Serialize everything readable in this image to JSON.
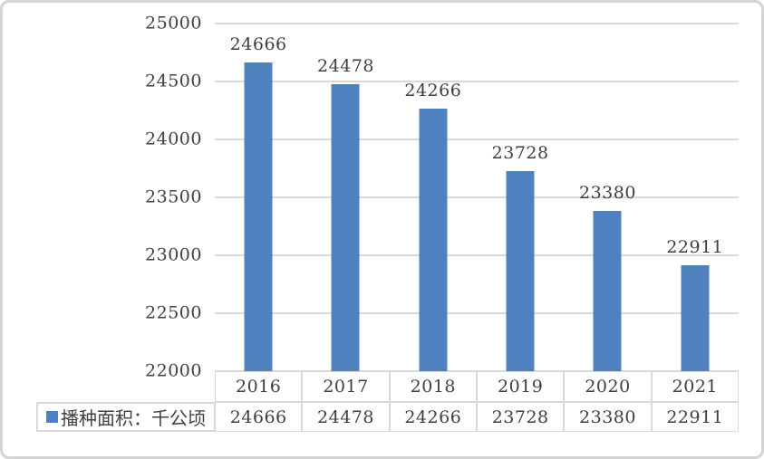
{
  "chart_data": {
    "type": "bar",
    "title": "",
    "categories": [
      "2016",
      "2017",
      "2018",
      "2019",
      "2020",
      "2021"
    ],
    "series": [
      {
        "name": "播种面积：千公顷",
        "values": [
          24666,
          24478,
          24266,
          23728,
          23380,
          22911
        ]
      }
    ],
    "ylim": [
      22000,
      25000
    ],
    "yticks": [
      25000,
      24500,
      24000,
      23500,
      23000,
      22500,
      22000
    ],
    "grid": true,
    "data_labels": true,
    "data_table_shown": true,
    "legend_position": "bottom-left",
    "colors": {
      "bar": "#4e81bd",
      "gridline": "#d9d9d9",
      "text": "#3f3f3f",
      "frame_border": "#d4d4d4"
    }
  },
  "legend": {
    "label": "播种面积：千公顷"
  }
}
